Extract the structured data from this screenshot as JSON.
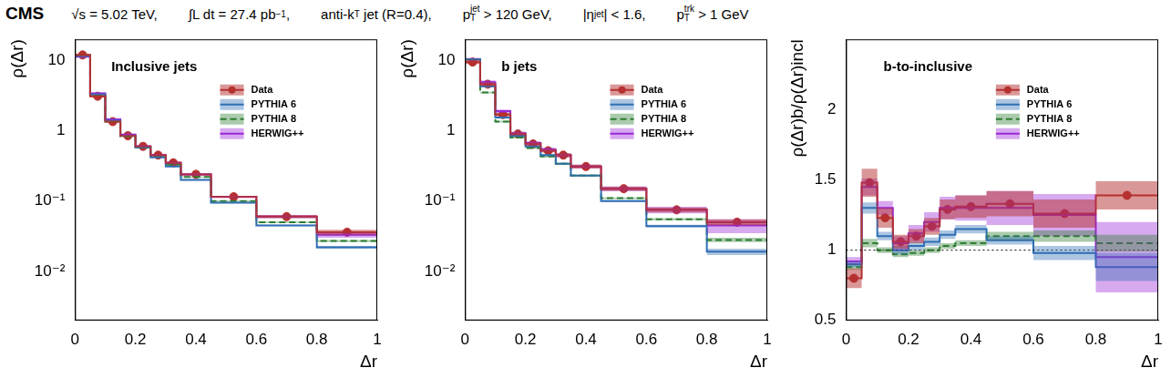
{
  "header": {
    "experiment": "CMS",
    "items": [
      [
        "√s = 5.02 TeV,"
      ],
      [
        "∫L dt = 27.4 pb",
        {
          "sup": "−1"
        },
        ","
      ],
      [
        "anti-k",
        {
          "sub": "T"
        },
        " jet (R=0.4),"
      ],
      [
        "p",
        {
          "sub": "T"
        },
        {
          "sup": "jet"
        },
        " > 120 GeV,"
      ],
      [
        "|η",
        {
          "sub": "jet"
        },
        "| < 1.6,"
      ],
      [
        "p",
        {
          "sub": "T"
        },
        {
          "sup": "trk"
        },
        " > 1 GeV"
      ]
    ]
  },
  "chart_data": [
    {
      "type": "histogram",
      "title": "Inclusive jets",
      "xlabel": "Δr",
      "ylabel": "ρ(Δr)",
      "bins": [
        0,
        0.05,
        0.1,
        0.15,
        0.2,
        0.25,
        0.3,
        0.35,
        0.45,
        0.6,
        0.8,
        1
      ],
      "xlim": [
        0,
        1
      ],
      "xticks": [
        0,
        0.2,
        0.4,
        0.6,
        0.8,
        1
      ],
      "ylim": [
        0.002,
        20
      ],
      "yticks": [
        {
          "value": 0.01,
          "label": "10⁻²"
        },
        {
          "value": 0.1,
          "label": "10⁻¹"
        },
        1,
        10
      ],
      "log": "y",
      "grid": false,
      "legend": "upper right",
      "series": [
        {
          "name": "Data",
          "color": "#b5302f",
          "marker": "circle",
          "line_style": "solid",
          "values": [
            12,
            3.1,
            1.35,
            0.85,
            0.6,
            0.45,
            0.35,
            0.24,
            0.115,
            0.06,
            0.036
          ],
          "errors": [
            0.5,
            0.12,
            0.05,
            0.03,
            0.02,
            0.015,
            0.012,
            0.008,
            0.004,
            0.003,
            0.003
          ]
        },
        {
          "name": "PYTHIA 6",
          "color": "#2f6fb5",
          "line_style": "solid",
          "values": [
            11.5,
            3.3,
            1.4,
            0.85,
            0.58,
            0.42,
            0.31,
            0.2,
            0.095,
            0.045,
            0.022
          ],
          "errors": [
            0.2,
            0.06,
            0.03,
            0.015,
            0.01,
            0.008,
            0.006,
            0.004,
            0.002,
            0.001,
            0.001
          ]
        },
        {
          "name": "PYTHIA 8",
          "color": "#2e7d32",
          "line_style": "dashed",
          "values": [
            11.8,
            3.2,
            1.35,
            0.83,
            0.58,
            0.43,
            0.33,
            0.22,
            0.1,
            0.05,
            0.027
          ],
          "errors": [
            0.2,
            0.06,
            0.03,
            0.015,
            0.01,
            0.008,
            0.006,
            0.004,
            0.002,
            0.001,
            0.001
          ]
        },
        {
          "name": "HERWIG++",
          "color": "#9a28d6",
          "line_style": "solid",
          "values": [
            11.3,
            3.4,
            1.45,
            0.88,
            0.6,
            0.45,
            0.35,
            0.24,
            0.115,
            0.06,
            0.033
          ],
          "errors": [
            0.3,
            0.1,
            0.05,
            0.03,
            0.02,
            0.015,
            0.012,
            0.008,
            0.004,
            0.003,
            0.003
          ]
        }
      ]
    },
    {
      "type": "histogram",
      "title": "b jets",
      "xlabel": "Δr",
      "ylabel": "ρ(Δr)",
      "bins": [
        0,
        0.05,
        0.1,
        0.15,
        0.2,
        0.25,
        0.3,
        0.35,
        0.45,
        0.6,
        0.8,
        1
      ],
      "xlim": [
        0,
        1
      ],
      "xticks": [
        0,
        0.2,
        0.4,
        0.6,
        0.8,
        1
      ],
      "ylim": [
        0.002,
        20
      ],
      "yticks": [
        {
          "value": 0.01,
          "label": "10⁻²"
        },
        {
          "value": 0.1,
          "label": "10⁻¹"
        },
        1,
        10
      ],
      "log": "y",
      "grid": false,
      "legend": "upper right",
      "series": [
        {
          "name": "Data",
          "color": "#b5302f",
          "marker": "circle",
          "line_style": "solid",
          "values": [
            9.5,
            4.6,
            1.7,
            0.9,
            0.65,
            0.52,
            0.45,
            0.31,
            0.15,
            0.075,
            0.05
          ],
          "errors": [
            0.6,
            0.3,
            0.1,
            0.05,
            0.04,
            0.03,
            0.03,
            0.02,
            0.01,
            0.006,
            0.005
          ]
        },
        {
          "name": "PYTHIA 6",
          "color": "#2f6fb5",
          "line_style": "solid",
          "values": [
            10.35,
            4.3,
            1.54,
            0.85,
            0.6,
            0.45,
            0.34,
            0.23,
            0.1,
            0.044,
            0.019
          ],
          "errors": [
            0.3,
            0.12,
            0.05,
            0.03,
            0.02,
            0.015,
            0.01,
            0.007,
            0.003,
            0.002,
            0.002
          ]
        },
        {
          "name": "PYTHIA 8",
          "color": "#2e7d32",
          "line_style": "dashed",
          "values": [
            10.4,
            3.5,
            1.35,
            0.8,
            0.57,
            0.43,
            0.34,
            0.23,
            0.11,
            0.055,
            0.028
          ],
          "errors": [
            0.3,
            0.1,
            0.04,
            0.025,
            0.02,
            0.015,
            0.01,
            0.007,
            0.003,
            0.002,
            0.002
          ]
        },
        {
          "name": "HERWIG++",
          "color": "#9a28d6",
          "line_style": "solid",
          "values": [
            10.4,
            4.9,
            1.9,
            0.92,
            0.67,
            0.54,
            0.45,
            0.31,
            0.15,
            0.075,
            0.045
          ],
          "errors": [
            0.5,
            0.3,
            0.1,
            0.05,
            0.04,
            0.035,
            0.03,
            0.02,
            0.012,
            0.008,
            0.01
          ]
        }
      ]
    },
    {
      "type": "histogram",
      "title": "b-to-inclusive",
      "xlabel": "Δr",
      "ylabel": "ρ(Δr)b/ρ(Δr)incl",
      "bins": [
        0,
        0.05,
        0.1,
        0.15,
        0.2,
        0.25,
        0.3,
        0.35,
        0.45,
        0.6,
        0.8,
        1
      ],
      "xlim": [
        0,
        1
      ],
      "xticks": [
        0,
        0.2,
        0.4,
        0.6,
        0.8,
        1
      ],
      "ylim": [
        0.5,
        2.5
      ],
      "yticks": [
        0.5,
        1,
        1.5,
        2
      ],
      "grid": false,
      "legend": "upper right",
      "reference_line": 1,
      "series": [
        {
          "name": "Data",
          "color": "#b5302f",
          "marker": "circle",
          "line_style": "solid",
          "values": [
            0.8,
            1.48,
            1.23,
            1.06,
            1.1,
            1.17,
            1.29,
            1.31,
            1.33,
            1.26,
            1.39
          ],
          "errors": [
            0.07,
            0.1,
            0.07,
            0.05,
            0.05,
            0.06,
            0.07,
            0.08,
            0.09,
            0.1,
            0.1
          ]
        },
        {
          "name": "PYTHIA 6",
          "color": "#2f6fb5",
          "line_style": "solid",
          "values": [
            0.9,
            1.3,
            1.1,
            1.0,
            1.03,
            1.06,
            1.11,
            1.15,
            1.07,
            0.98,
            0.88
          ],
          "errors": [
            0.02,
            0.04,
            0.03,
            0.03,
            0.03,
            0.03,
            0.03,
            0.03,
            0.03,
            0.05,
            0.1
          ]
        },
        {
          "name": "PYTHIA 8",
          "color": "#2e7d32",
          "line_style": "dashed",
          "values": [
            0.88,
            1.05,
            1.0,
            0.97,
            0.98,
            1.0,
            1.03,
            1.05,
            1.1,
            1.1,
            1.05
          ],
          "errors": [
            0.02,
            0.03,
            0.02,
            0.02,
            0.02,
            0.02,
            0.02,
            0.02,
            0.03,
            0.04,
            0.06
          ]
        },
        {
          "name": "HERWIG++",
          "color": "#9a28d6",
          "line_style": "solid",
          "values": [
            0.92,
            1.45,
            1.3,
            1.05,
            1.12,
            1.2,
            1.3,
            1.3,
            1.3,
            1.25,
            0.95
          ],
          "errors": [
            0.03,
            0.06,
            0.05,
            0.05,
            0.06,
            0.07,
            0.08,
            0.09,
            0.12,
            0.15,
            0.25
          ]
        }
      ]
    }
  ]
}
